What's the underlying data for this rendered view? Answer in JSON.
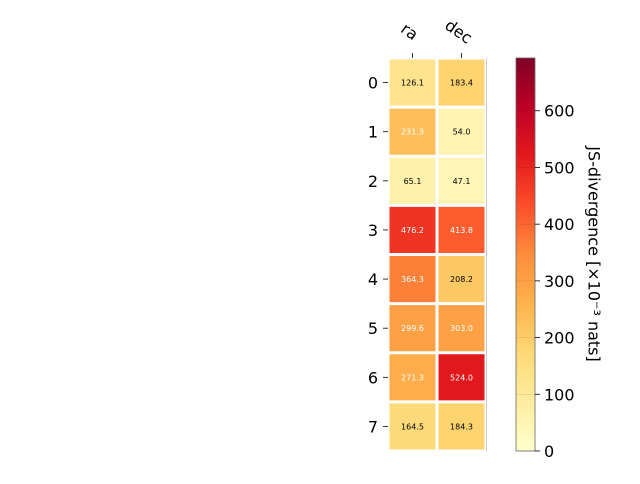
{
  "chart_data": {
    "type": "heatmap",
    "columns": [
      "ra",
      "dec"
    ],
    "rows": [
      "0",
      "1",
      "2",
      "3",
      "4",
      "5",
      "6",
      "7"
    ],
    "values": [
      [
        126.1,
        183.4
      ],
      [
        231.3,
        54.0
      ],
      [
        65.1,
        47.1
      ],
      [
        476.2,
        413.8
      ],
      [
        364.3,
        208.2
      ],
      [
        299.6,
        303.0
      ],
      [
        271.3,
        524.0
      ],
      [
        164.5,
        184.3
      ]
    ],
    "value_labels": [
      [
        "126.1",
        "183.4"
      ],
      [
        "231.3",
        "54.0"
      ],
      [
        "65.1",
        "47.1"
      ],
      [
        "476.2",
        "413.8"
      ],
      [
        "364.3",
        "208.2"
      ],
      [
        "299.6",
        "303.0"
      ],
      [
        "271.3",
        "524.0"
      ],
      [
        "164.5",
        "184.3"
      ]
    ],
    "colorbar": {
      "label": "JS-divergence [×10⁻³ nats]",
      "range": [
        0,
        693
      ],
      "ticks": [
        0,
        100,
        200,
        300,
        400,
        500,
        600
      ],
      "colormap": "YlOrRd"
    },
    "grid": false
  }
}
